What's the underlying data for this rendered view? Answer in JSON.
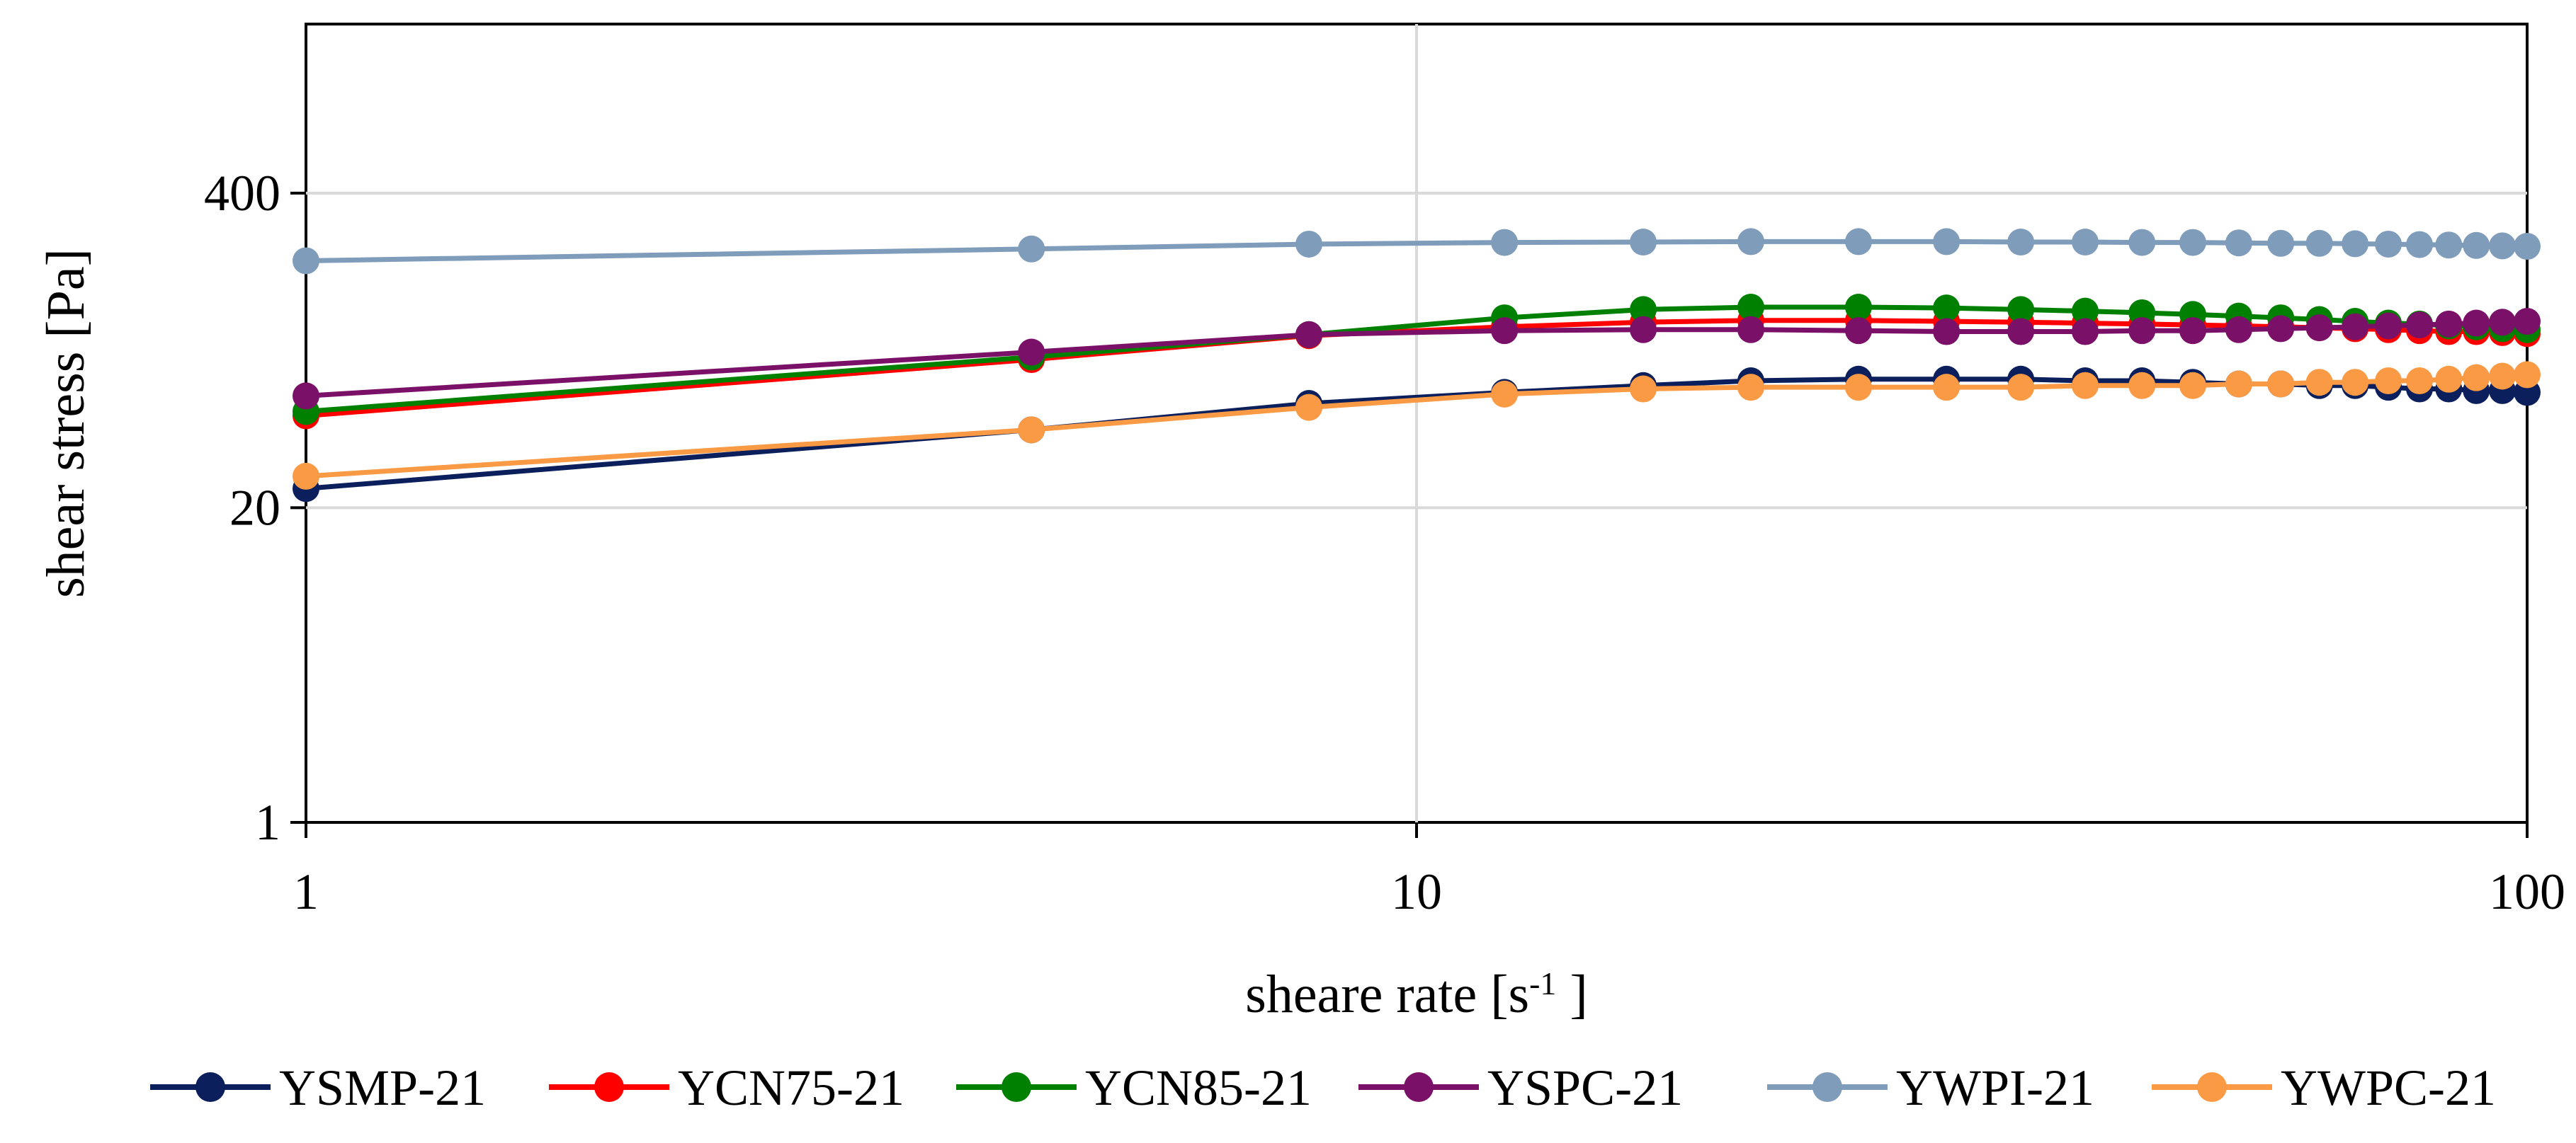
{
  "chart_data": {
    "type": "line",
    "title": "",
    "xlabel": "sheare rate [s",
    "xlabel_sup": "-1",
    "xlabel_suffix": " ]",
    "ylabel": "shear stress [Pa]",
    "x_scale": "log",
    "y_scale": "log",
    "xlim": [
      1,
      100
    ],
    "ylim": [
      1,
      2000
    ],
    "x_ticks": [
      1,
      10,
      100
    ],
    "x_tick_labels": [
      "1",
      "10",
      "100"
    ],
    "y_ticks": [
      1,
      20,
      400
    ],
    "y_tick_labels": [
      "1",
      "20",
      "400"
    ],
    "grid": true,
    "legend_position": "bottom",
    "x": [
      1,
      4.5,
      8,
      12,
      16,
      20,
      25,
      30,
      35,
      40,
      45,
      50,
      55,
      60,
      65,
      70,
      75,
      80,
      85,
      90,
      95,
      100
    ],
    "series": [
      {
        "name": "YSMP-21",
        "color": "#0b1f5c",
        "values": [
          24,
          42,
          54,
          60,
          64,
          67,
          68,
          68,
          68,
          67,
          67,
          66,
          65,
          65,
          64,
          64,
          63,
          62,
          62,
          61,
          61,
          60
        ]
      },
      {
        "name": "YCN75-21",
        "color": "#ff0000",
        "values": [
          48,
          82,
          103,
          112,
          117,
          119,
          119,
          118,
          117,
          116,
          115,
          114,
          113,
          112,
          111,
          110,
          109,
          108,
          107,
          107,
          106,
          105
        ]
      },
      {
        "name": "YCN85-21",
        "color": "#008000",
        "values": [
          50,
          84,
          104,
          122,
          132,
          135,
          135,
          134,
          132,
          130,
          128,
          126,
          124,
          122,
          120,
          118,
          116,
          115,
          113,
          112,
          110,
          109
        ]
      },
      {
        "name": "YSPC-21",
        "color": "#7b1068",
        "values": [
          58,
          88,
          104,
          108,
          109,
          109,
          108,
          107,
          107,
          107,
          108,
          108,
          109,
          110,
          111,
          112,
          113,
          114,
          115,
          116,
          117,
          118
        ]
      },
      {
        "name": "YWPI-21",
        "color": "#7f9cbb",
        "values": [
          210,
          235,
          246,
          250,
          251,
          252,
          252,
          252,
          251,
          251,
          250,
          250,
          249,
          248,
          248,
          247,
          246,
          245,
          244,
          243,
          242,
          241
        ]
      },
      {
        "name": "YWPC-21",
        "color": "#fa9a45",
        "values": [
          27,
          42,
          52,
          59,
          62,
          63,
          63,
          63,
          63,
          64,
          64,
          64,
          65,
          65,
          66,
          66,
          67,
          67,
          68,
          69,
          70,
          71
        ]
      }
    ]
  }
}
